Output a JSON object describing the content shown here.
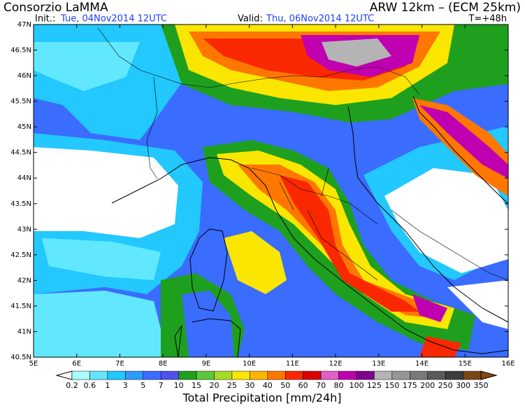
{
  "header": {
    "title": "Consorzio LaMMA",
    "model": "ARW 12km – (ECM 25km)",
    "init_label": "Init.:",
    "init": "Tue, 04Nov2014 12UTC",
    "valid_label": "Valid:",
    "valid": "Thu, 06Nov2014 12UTC",
    "lead": "T=+48h"
  },
  "map": {
    "lat_labels": [
      "47N",
      "46.5N",
      "46N",
      "45.5N",
      "45N",
      "44.5N",
      "44N",
      "43.5N",
      "43N",
      "42.5N",
      "42N",
      "41.5N",
      "41N",
      "40.5N"
    ],
    "lon_labels": [
      "5E",
      "6E",
      "7E",
      "8E",
      "9E",
      "10E",
      "11E",
      "12E",
      "13E",
      "14E",
      "15E",
      "16E"
    ]
  },
  "colorbar": {
    "title": "Total Precipitation [mm/24h]",
    "levels": [
      0.2,
      0.6,
      1,
      3,
      5,
      7,
      10,
      15,
      20,
      25,
      30,
      40,
      50,
      60,
      70,
      80,
      100,
      125,
      150,
      175,
      200,
      250,
      300,
      350
    ],
    "colors": [
      "#ffffff",
      "#a8fdfd",
      "#62e8fe",
      "#22c8fe",
      "#2e9afe",
      "#3a6cfe",
      "#5050ee",
      "#1ea01e",
      "#5ac83c",
      "#a8dc28",
      "#fae600",
      "#feb400",
      "#fe7800",
      "#fa2800",
      "#dc0000",
      "#e060c8",
      "#c000b0",
      "#800090",
      "#b4b4b4",
      "#969696",
      "#787878",
      "#5a5a5a",
      "#3c3c3c",
      "#784614",
      "#8b4513"
    ]
  }
}
